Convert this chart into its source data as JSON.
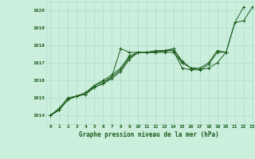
{
  "title": "Graphe pression niveau de la mer (hPa)",
  "background_color": "#cceedd",
  "grid_color": "#aaddcc",
  "line_color": "#1a5c1a",
  "xlim": [
    -0.5,
    23
  ],
  "ylim": [
    1013.5,
    1020.5
  ],
  "xticks": [
    0,
    1,
    2,
    3,
    4,
    5,
    6,
    7,
    8,
    9,
    10,
    11,
    12,
    13,
    14,
    15,
    16,
    17,
    18,
    19,
    20,
    21,
    22,
    23
  ],
  "yticks": [
    1014,
    1015,
    1016,
    1017,
    1018,
    1019,
    1020
  ],
  "series": [
    {
      "x": [
        0,
        1,
        2,
        3,
        4,
        5,
        6,
        7,
        8,
        9,
        10,
        11,
        12,
        13,
        14,
        15,
        16,
        17,
        18,
        19,
        20,
        21,
        22
      ],
      "y": [
        1014.0,
        1014.3,
        1014.9,
        1015.1,
        1015.2,
        1015.6,
        1015.8,
        1016.1,
        1016.5,
        1017.2,
        1017.6,
        1017.6,
        1017.6,
        1017.6,
        1017.6,
        1017.0,
        1016.7,
        1016.6,
        1016.7,
        1017.0,
        1017.6,
        1019.3,
        1020.2
      ]
    },
    {
      "x": [
        0,
        1,
        2,
        3,
        4,
        5,
        6,
        7,
        8,
        9,
        10,
        11,
        12,
        13,
        14,
        15,
        16,
        17,
        18,
        19,
        20
      ],
      "y": [
        1014.0,
        1014.3,
        1014.9,
        1015.1,
        1015.3,
        1015.7,
        1015.9,
        1016.2,
        1017.8,
        1017.6,
        1017.6,
        1017.6,
        1017.6,
        1017.7,
        1017.7,
        1016.7,
        1016.6,
        1016.6,
        1016.9,
        1017.6,
        1017.6
      ]
    },
    {
      "x": [
        0,
        1,
        2,
        3,
        4,
        5,
        6,
        7,
        8,
        9,
        10,
        11,
        12,
        13,
        14,
        15
      ],
      "y": [
        1014.0,
        1014.3,
        1014.9,
        1015.1,
        1015.2,
        1015.6,
        1015.8,
        1016.2,
        1016.6,
        1017.3,
        1017.6,
        1017.6,
        1017.6,
        1017.7,
        1017.8,
        1017.0
      ]
    },
    {
      "x": [
        0,
        1,
        2,
        3,
        4,
        5,
        6,
        7,
        8,
        9,
        10,
        11,
        12,
        13,
        14,
        15,
        16,
        17,
        18,
        19,
        20,
        21,
        22,
        23
      ],
      "y": [
        1014.0,
        1014.4,
        1015.0,
        1015.1,
        1015.2,
        1015.7,
        1016.0,
        1016.3,
        1016.7,
        1017.4,
        1017.6,
        1017.6,
        1017.7,
        1017.7,
        1017.8,
        1017.1,
        1016.7,
        1016.7,
        1017.0,
        1017.7,
        1017.6,
        1019.3,
        1019.4,
        1020.2
      ]
    }
  ]
}
